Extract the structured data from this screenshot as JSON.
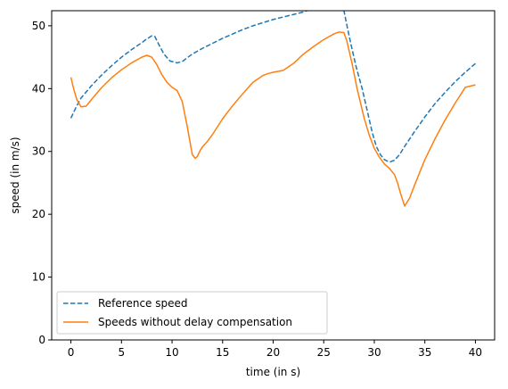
{
  "chart_data": {
    "type": "line",
    "title": "",
    "xlabel": "time (in s)",
    "ylabel": "speed (in m/s)",
    "xlim": [
      -1.9,
      41.9
    ],
    "ylim": [
      0,
      52.4
    ],
    "xticks": [
      0,
      5,
      10,
      15,
      20,
      25,
      30,
      35,
      40
    ],
    "yticks": [
      0,
      10,
      20,
      30,
      40,
      50
    ],
    "grid": false,
    "legend_position": "lower-left",
    "series": [
      {
        "name": "Reference speed",
        "style": "dashed",
        "color": "#1f77b4",
        "x": [
          0,
          0.5,
          1,
          2,
          3,
          4,
          5,
          6,
          7,
          7.5,
          8,
          8.3,
          8.7,
          9.2,
          9.8,
          10.5,
          11,
          11.5,
          12,
          13,
          14,
          15,
          16,
          17,
          18,
          19,
          20,
          21,
          22,
          23,
          23.5,
          24,
          25,
          26,
          26.8,
          27,
          27.3,
          27.7,
          28.2,
          28.8,
          29.3,
          29.8,
          30.2,
          30.6,
          31,
          31.5,
          32,
          32.5,
          33,
          34,
          35,
          36,
          37,
          38,
          39,
          40
        ],
        "y": [
          35.3,
          37,
          38.5,
          40.4,
          42.1,
          43.6,
          45,
          46.2,
          47.3,
          47.9,
          48.4,
          48.3,
          47,
          45.5,
          44.4,
          44.1,
          44.3,
          44.9,
          45.5,
          46.4,
          47.2,
          48,
          48.7,
          49.4,
          50,
          50.5,
          51,
          51.4,
          51.8,
          52.2,
          52.5,
          53,
          54,
          55,
          55.8,
          52.4,
          50,
          47,
          43.5,
          40,
          36.5,
          33,
          30.8,
          29.5,
          28.7,
          28.3,
          28.6,
          29.5,
          30.8,
          33.2,
          35.5,
          37.6,
          39.4,
          41.1,
          42.6,
          44
        ]
      },
      {
        "name": "Speeds without delay compensation",
        "style": "solid",
        "color": "#ff7f0e",
        "x": [
          0,
          0.3,
          0.6,
          1,
          1.5,
          2,
          3,
          4,
          5,
          6,
          7,
          7.5,
          8,
          8.5,
          9,
          9.5,
          10,
          10.5,
          11,
          11.5,
          12,
          12.3,
          12.5,
          12.8,
          13,
          13.5,
          14,
          15,
          16,
          17,
          18,
          19,
          19.5,
          20,
          21,
          22,
          23,
          24,
          25,
          26,
          26.5,
          27,
          27.3,
          27.8,
          28.3,
          29,
          29.5,
          30,
          30.5,
          31,
          31.5,
          32,
          32.3,
          32.6,
          33,
          33.5,
          34,
          35,
          36,
          37,
          38,
          39,
          40
        ],
        "y": [
          41.8,
          39.8,
          38.2,
          37.1,
          37.2,
          38.2,
          40.1,
          41.7,
          43,
          44.1,
          45,
          45.3,
          45,
          43.8,
          42.2,
          41,
          40.2,
          39.7,
          38,
          34,
          29.5,
          28.9,
          29.2,
          30.2,
          30.7,
          31.6,
          32.7,
          35.2,
          37.3,
          39.2,
          41,
          42.1,
          42.4,
          42.6,
          42.9,
          44,
          45.5,
          46.7,
          47.8,
          48.7,
          49,
          48.9,
          47.5,
          44,
          40,
          35.3,
          32.6,
          30.5,
          29.1,
          28,
          27.3,
          26.3,
          25,
          23.3,
          21.3,
          22.6,
          24.7,
          28.7,
          32,
          35,
          37.7,
          40.2,
          40.6
        ]
      }
    ]
  }
}
